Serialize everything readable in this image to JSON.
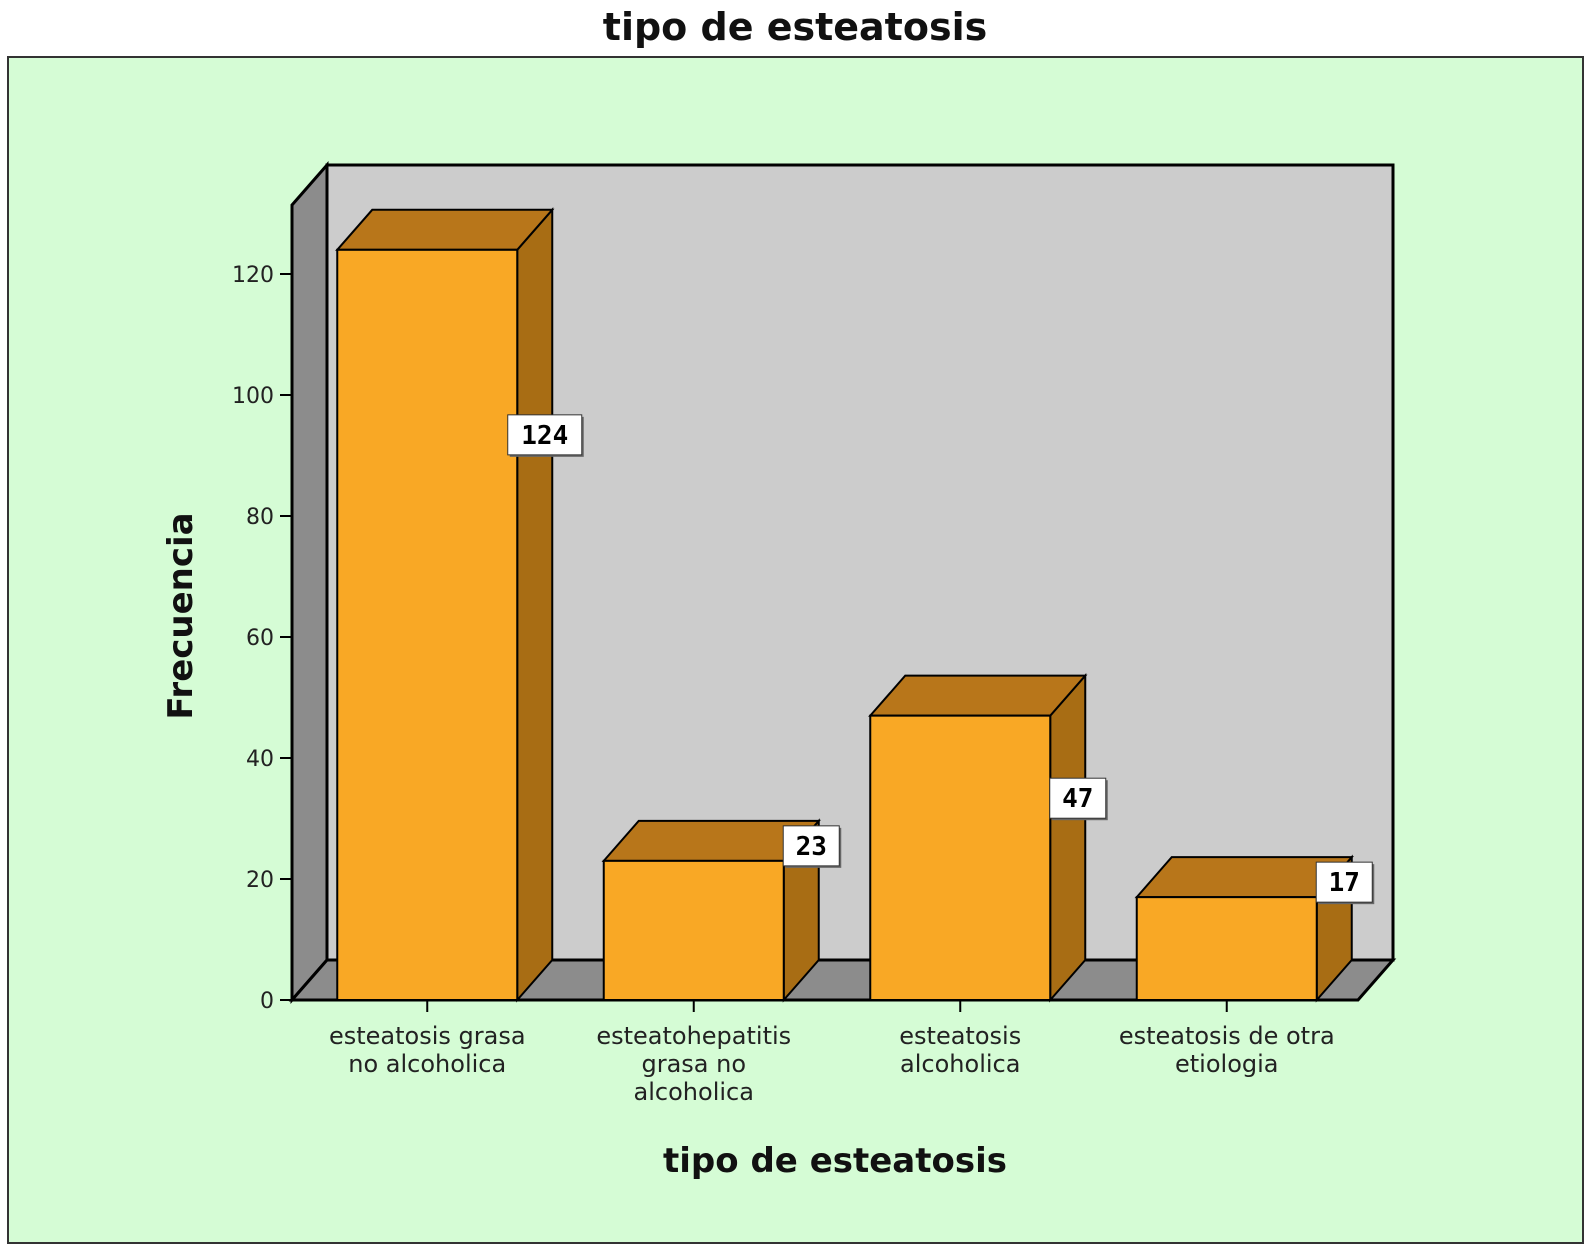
{
  "colors": {
    "outer_background": "#d5fcd5",
    "plot_back_wall": "#cccccc",
    "side_wall": "#8c8c8c",
    "floor": "#8c8c8c",
    "bar_front": "#f9a825",
    "bar_top": "#b8761a",
    "bar_side": "#a86d14",
    "label_box": "#ffffff"
  },
  "chart_data": {
    "type": "bar",
    "title": "tipo de esteatosis",
    "xlabel": "tipo de esteatosis",
    "ylabel": "Frecuencia",
    "ylim": [
      0,
      120
    ],
    "yticks": [
      0,
      20,
      40,
      60,
      80,
      100,
      120
    ],
    "grid": false,
    "legend": "none",
    "style": "3d",
    "categories": [
      [
        "esteatosis grasa",
        "no alcoholica"
      ],
      [
        "esteatohepatitis",
        "grasa no",
        "alcoholica"
      ],
      [
        "esteatosis",
        "alcoholica"
      ],
      [
        "esteatosis de otra",
        "etiologia"
      ]
    ],
    "values": [
      124,
      23,
      47,
      17
    ],
    "data_labels": [
      "124",
      "23",
      "47",
      "17"
    ]
  }
}
